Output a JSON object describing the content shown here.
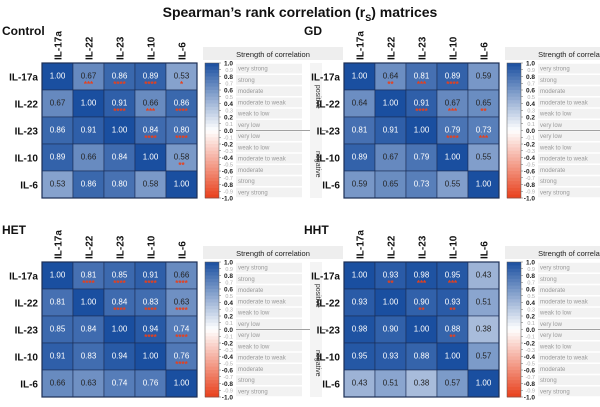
{
  "title": {
    "main": "Spearman’s rank correlation (r",
    "sub": "S",
    "end": ") matrices"
  },
  "legend": {
    "title": "Strength of correlation",
    "ticks": [
      "1.0",
      "0.9",
      "0.8",
      "0.7",
      "0.6",
      "0.5",
      "0.4",
      "0.3",
      "0.2",
      "0.1",
      "0.0",
      "-0.1",
      "-0.2",
      "-0.3",
      "-0.4",
      "-0.5",
      "-0.6",
      "-0.7",
      "-0.8",
      "-0.9",
      "-1.0"
    ],
    "strength_labels": [
      "very strong",
      "strong",
      "moderate",
      "moderate to weak",
      "weak to low",
      "very low",
      "very low",
      "weak to low",
      "moderate to weak",
      "moderate",
      "strong",
      "very strong"
    ],
    "positive_label": "positive",
    "negative_label": "negative"
  },
  "colors": {
    "strong_positive": "#1a4fa0",
    "zero": "#ffffff",
    "strong_negative": "#e8401c",
    "star": "#e8401c"
  },
  "chart_data": [
    {
      "type": "heatmap",
      "title": "Control",
      "categories": [
        "IL-17a",
        "IL-22",
        "IL-23",
        "IL-10",
        "IL-6"
      ],
      "values": [
        [
          1.0,
          0.67,
          0.86,
          0.89,
          0.53
        ],
        [
          0.67,
          1.0,
          0.91,
          0.66,
          0.86
        ],
        [
          0.86,
          0.91,
          1.0,
          0.84,
          0.8
        ],
        [
          0.89,
          0.66,
          0.84,
          1.0,
          0.58
        ],
        [
          0.53,
          0.86,
          0.8,
          0.58,
          1.0
        ]
      ],
      "stars": [
        [
          "",
          "***",
          "****",
          "****",
          "*"
        ],
        [
          "",
          "",
          "****",
          "***",
          "****"
        ],
        [
          "",
          "",
          "",
          "****",
          "****"
        ],
        [
          "",
          "",
          "",
          "",
          "**"
        ],
        [
          "",
          "",
          "",
          "",
          ""
        ]
      ],
      "color_range": [
        -1,
        1
      ]
    },
    {
      "type": "heatmap",
      "title": "GD",
      "categories": [
        "IL-17a",
        "IL-22",
        "IL-23",
        "IL-10",
        "IL-6"
      ],
      "values": [
        [
          1.0,
          0.64,
          0.81,
          0.89,
          0.59
        ],
        [
          0.64,
          1.0,
          0.91,
          0.67,
          0.65
        ],
        [
          0.81,
          0.91,
          1.0,
          0.79,
          0.73
        ],
        [
          0.89,
          0.67,
          0.79,
          1.0,
          0.55
        ],
        [
          0.59,
          0.65,
          0.73,
          0.55,
          1.0
        ]
      ],
      "stars": [
        [
          "",
          "**",
          "***",
          "****",
          ""
        ],
        [
          "",
          "",
          "****",
          "***",
          "**"
        ],
        [
          "",
          "",
          "",
          "****",
          "***"
        ],
        [
          "",
          "",
          "",
          "",
          ""
        ],
        [
          "",
          "",
          "",
          "",
          ""
        ]
      ],
      "color_range": [
        -1,
        1
      ]
    },
    {
      "type": "heatmap",
      "title": "HET",
      "categories": [
        "IL-17a",
        "IL-22",
        "IL-23",
        "IL-10",
        "IL-6"
      ],
      "values": [
        [
          1.0,
          0.81,
          0.85,
          0.91,
          0.66
        ],
        [
          0.81,
          1.0,
          0.84,
          0.83,
          0.63
        ],
        [
          0.85,
          0.84,
          1.0,
          0.94,
          0.74
        ],
        [
          0.91,
          0.83,
          0.94,
          1.0,
          0.76
        ],
        [
          0.66,
          0.63,
          0.74,
          0.76,
          1.0
        ]
      ],
      "stars": [
        [
          "",
          "****",
          "****",
          "****",
          "****"
        ],
        [
          "",
          "",
          "****",
          "****",
          "****"
        ],
        [
          "",
          "",
          "",
          "****",
          "****"
        ],
        [
          "",
          "",
          "",
          "",
          "****"
        ],
        [
          "",
          "",
          "",
          "",
          ""
        ]
      ],
      "color_range": [
        -1,
        1
      ]
    },
    {
      "type": "heatmap",
      "title": "HHT",
      "categories": [
        "IL-17a",
        "IL-22",
        "IL-23",
        "IL-10",
        "IL-6"
      ],
      "values": [
        [
          1.0,
          0.93,
          0.98,
          0.95,
          0.43
        ],
        [
          0.93,
          1.0,
          0.9,
          0.93,
          0.51
        ],
        [
          0.98,
          0.9,
          1.0,
          0.88,
          0.38
        ],
        [
          0.95,
          0.93,
          0.88,
          1.0,
          0.57
        ],
        [
          0.43,
          0.51,
          0.38,
          0.57,
          1.0
        ]
      ],
      "stars": [
        [
          "",
          "**",
          "***",
          "***",
          ""
        ],
        [
          "",
          "",
          "**",
          "**",
          ""
        ],
        [
          "",
          "",
          "",
          "**",
          ""
        ],
        [
          "",
          "",
          "",
          "",
          ""
        ],
        [
          "",
          "",
          "",
          "",
          ""
        ]
      ],
      "color_range": [
        -1,
        1
      ]
    }
  ]
}
